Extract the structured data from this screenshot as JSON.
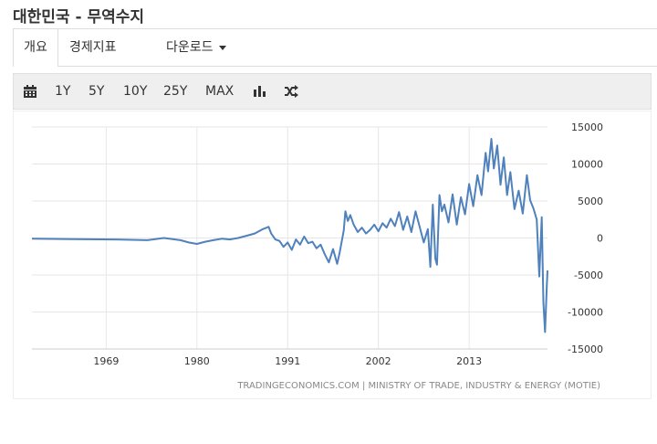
{
  "page": {
    "title": "대한민국 - 무역수지"
  },
  "tabs": [
    {
      "label": "개요"
    },
    {
      "label": "경제지표"
    },
    {
      "label": "다운로드"
    }
  ],
  "toolbar": {
    "ranges": [
      "1Y",
      "5Y",
      "10Y",
      "25Y",
      "MAX"
    ],
    "icons": [
      "calendar-icon",
      "bar-chart-icon",
      "shuffle-icon"
    ]
  },
  "colors": {
    "series": "#4f81bd",
    "grid": "#e6e6e6",
    "axis_text": "#333333",
    "source_text": "#888888"
  },
  "chart_data": {
    "type": "line",
    "title": "",
    "xlabel": "",
    "ylabel": "",
    "xlim": [
      1960,
      2022.5
    ],
    "ylim": [
      -15000,
      15000
    ],
    "x_ticks": [
      1969,
      1980,
      1991,
      2002,
      2013
    ],
    "y_ticks": [
      15000,
      10000,
      5000,
      0,
      -5000,
      -10000,
      -15000
    ],
    "y_side": "right",
    "grid": true,
    "legend": "none",
    "source": "TRADINGECONOMICS.COM | MINISTRY OF TRADE, INDUSTRY & ENERGY (MOTIE)",
    "series": [
      {
        "x": [
          1960,
          1965,
          1970,
          1974,
          1976,
          1978,
          1979,
          1980,
          1981,
          1982,
          1983,
          1984,
          1985,
          1986,
          1987,
          1988,
          1988.7,
          1989,
          1989.5,
          1990,
          1990.5,
          1991,
          1991.5,
          1992,
          1992.5,
          1993,
          1993.5,
          1994,
          1994.5,
          1995,
          1995.5,
          1996,
          1996.5,
          1997,
          1997.3,
          1997.8,
          1998,
          1998.3,
          1998.6,
          1999,
          1999.5,
          2000,
          2000.5,
          2001,
          2001.5,
          2002,
          2002.5,
          2003,
          2003.5,
          2004,
          2004.5,
          2005,
          2005.5,
          2006,
          2006.5,
          2007,
          2007.5,
          2008,
          2008.3,
          2008.6,
          2008.9,
          2009.1,
          2009.4,
          2009.7,
          2010,
          2010.5,
          2011,
          2011.5,
          2012,
          2012.5,
          2013,
          2013.5,
          2014,
          2014.5,
          2015,
          2015.3,
          2015.7,
          2016,
          2016.4,
          2016.8,
          2017.2,
          2017.6,
          2018,
          2018.5,
          2019,
          2019.5,
          2020,
          2020.4,
          2020.8,
          2021.2,
          2021.5,
          2021.8,
          2022,
          2022.2,
          2022.4,
          2022.5
        ],
        "y": [
          -100,
          -150,
          -200,
          -300,
          0,
          -300,
          -600,
          -800,
          -500,
          -300,
          -100,
          -200,
          0,
          300,
          600,
          1200,
          1500,
          600,
          -200,
          -400,
          -1200,
          -600,
          -1600,
          -200,
          -900,
          200,
          -700,
          -500,
          -1400,
          -900,
          -2200,
          -3300,
          -1500,
          -3500,
          -2000,
          1000,
          3600,
          2300,
          3100,
          1800,
          800,
          1400,
          600,
          1100,
          1800,
          900,
          2000,
          1400,
          2600,
          1600,
          3500,
          1100,
          2900,
          800,
          3600,
          1500,
          -600,
          1200,
          -3900,
          4500,
          -2800,
          -3600,
          5800,
          3600,
          4500,
          2100,
          5900,
          1800,
          5500,
          3200,
          7300,
          4300,
          8500,
          5800,
          11500,
          9000,
          13400,
          9400,
          12500,
          7200,
          10900,
          5800,
          8900,
          3900,
          6400,
          3300,
          8500,
          5100,
          4000,
          2500,
          -5200,
          2800,
          -8700,
          -12700,
          -6900,
          -4400
        ]
      }
    ]
  }
}
